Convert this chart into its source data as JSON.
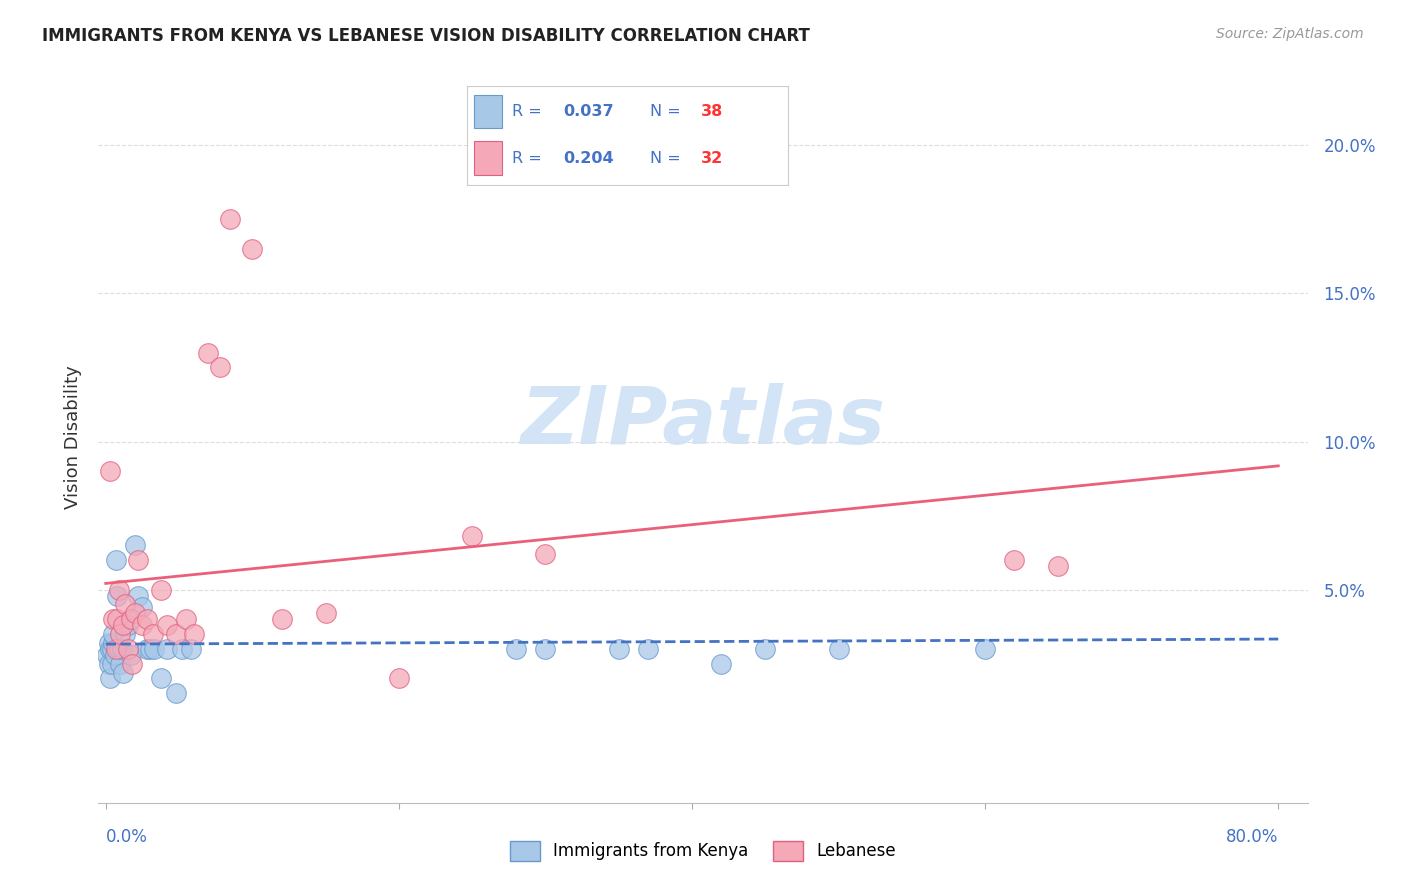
{
  "title": "IMMIGRANTS FROM KENYA VS LEBANESE VISION DISABILITY CORRELATION CHART",
  "source": "Source: ZipAtlas.com",
  "ylabel": "Vision Disability",
  "xlim": [
    -0.005,
    0.82
  ],
  "ylim": [
    -0.022,
    0.225
  ],
  "kenya_R": 0.037,
  "kenya_N": 38,
  "lebanese_R": 0.204,
  "lebanese_N": 32,
  "kenya_color": "#a8c8e8",
  "lebanese_color": "#f4a8b8",
  "kenya_edge_color": "#6699cc",
  "lebanese_edge_color": "#e06080",
  "kenya_line_color": "#4472c4",
  "lebanese_line_color": "#e8607a",
  "legend_R_color": "#4472c4",
  "legend_N_color": "#ff3333",
  "title_color": "#222222",
  "source_color": "#999999",
  "ylabel_color": "#333333",
  "axis_tick_color": "#4472c4",
  "grid_color": "#dddddd",
  "background_color": "#ffffff",
  "watermark": "ZIPatlas",
  "watermark_color": "#cce0f5",
  "kenya_x": [
    0.001,
    0.002,
    0.002,
    0.003,
    0.003,
    0.004,
    0.004,
    0.005,
    0.005,
    0.006,
    0.007,
    0.008,
    0.009,
    0.01,
    0.011,
    0.012,
    0.013,
    0.015,
    0.017,
    0.02,
    0.022,
    0.025,
    0.028,
    0.03,
    0.033,
    0.038,
    0.042,
    0.048,
    0.052,
    0.058,
    0.28,
    0.3,
    0.35,
    0.37,
    0.42,
    0.45,
    0.5,
    0.6
  ],
  "kenya_y": [
    0.028,
    0.032,
    0.025,
    0.03,
    0.02,
    0.025,
    0.03,
    0.032,
    0.035,
    0.028,
    0.06,
    0.048,
    0.03,
    0.025,
    0.03,
    0.022,
    0.035,
    0.038,
    0.028,
    0.065,
    0.048,
    0.044,
    0.03,
    0.03,
    0.03,
    0.02,
    0.03,
    0.015,
    0.03,
    0.03,
    0.03,
    0.03,
    0.03,
    0.03,
    0.025,
    0.03,
    0.03,
    0.03
  ],
  "lebanese_x": [
    0.003,
    0.005,
    0.007,
    0.008,
    0.009,
    0.01,
    0.012,
    0.013,
    0.015,
    0.017,
    0.018,
    0.02,
    0.022,
    0.025,
    0.028,
    0.032,
    0.038,
    0.042,
    0.048,
    0.055,
    0.06,
    0.07,
    0.078,
    0.085,
    0.1,
    0.12,
    0.15,
    0.2,
    0.25,
    0.3,
    0.62,
    0.65
  ],
  "lebanese_y": [
    0.09,
    0.04,
    0.03,
    0.04,
    0.05,
    0.035,
    0.038,
    0.045,
    0.03,
    0.04,
    0.025,
    0.042,
    0.06,
    0.038,
    0.04,
    0.035,
    0.05,
    0.038,
    0.035,
    0.04,
    0.035,
    0.13,
    0.125,
    0.175,
    0.165,
    0.04,
    0.042,
    0.02,
    0.068,
    0.062,
    0.06,
    0.058
  ]
}
